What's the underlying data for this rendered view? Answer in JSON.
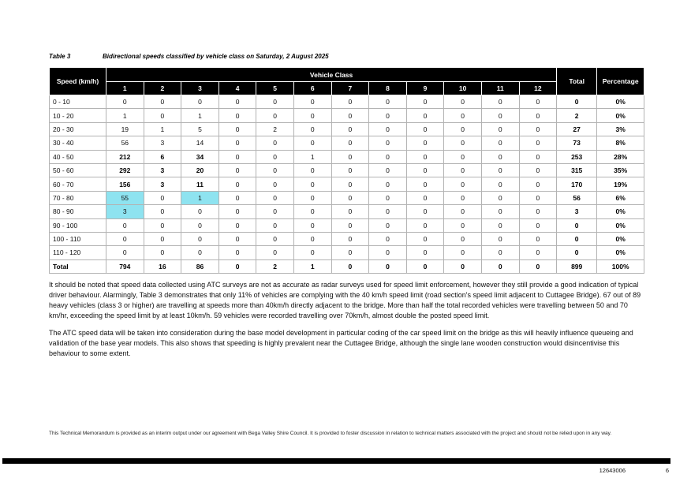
{
  "page": {
    "caption_label": "Table 3",
    "caption_text": "Bidirectional speeds classified by vehicle class on Saturday, 2 August 2025",
    "footnote": "This Technical Memorandum is provided as an interim output under our agreement with Bega Valley Shire Council. It is provided to foster discussion in relation to technical matters associated with the project and should not be relied upon in any way.",
    "footer": {
      "doc_number": "12643006",
      "page_number": "6"
    }
  },
  "table": {
    "corner_header": "Speed (km/h)",
    "group_header": "Vehicle Class",
    "class_columns": [
      "1",
      "2",
      "3",
      "4",
      "5",
      "6",
      "7",
      "8",
      "9",
      "10",
      "11",
      "12"
    ],
    "total_header": "Total",
    "percentage_header": "Percentage",
    "highlight_color": "#8ee3f0",
    "rows": [
      {
        "label": "0 - 10",
        "values": [
          0,
          0,
          0,
          0,
          0,
          0,
          0,
          0,
          0,
          0,
          0,
          0
        ],
        "total": "0",
        "pct": "0%"
      },
      {
        "label": "10 - 20",
        "values": [
          1,
          0,
          1,
          0,
          0,
          0,
          0,
          0,
          0,
          0,
          0,
          0
        ],
        "total": "2",
        "pct": "0%"
      },
      {
        "label": "20 - 30",
        "values": [
          19,
          1,
          5,
          0,
          2,
          0,
          0,
          0,
          0,
          0,
          0,
          0
        ],
        "total": "27",
        "pct": "3%"
      },
      {
        "label": "30 - 40",
        "values": [
          56,
          3,
          14,
          0,
          0,
          0,
          0,
          0,
          0,
          0,
          0,
          0
        ],
        "total": "73",
        "pct": "8%"
      },
      {
        "label": "40 - 50",
        "values": [
          212,
          6,
          34,
          0,
          0,
          1,
          0,
          0,
          0,
          0,
          0,
          0
        ],
        "total": "253",
        "pct": "28%",
        "bold": [
          0,
          1,
          2
        ]
      },
      {
        "label": "50 - 60",
        "values": [
          292,
          3,
          20,
          0,
          0,
          0,
          0,
          0,
          0,
          0,
          0,
          0
        ],
        "total": "315",
        "pct": "35%",
        "bold": [
          0,
          1,
          2
        ]
      },
      {
        "label": "60 - 70",
        "values": [
          156,
          3,
          11,
          0,
          0,
          0,
          0,
          0,
          0,
          0,
          0,
          0
        ],
        "total": "170",
        "pct": "19%",
        "bold": [
          0,
          1,
          2
        ]
      },
      {
        "label": "70 - 80",
        "values": [
          55,
          0,
          1,
          0,
          0,
          0,
          0,
          0,
          0,
          0,
          0,
          0
        ],
        "total": "56",
        "pct": "6%",
        "hl": [
          0,
          2
        ]
      },
      {
        "label": "80 - 90",
        "values": [
          3,
          0,
          0,
          0,
          0,
          0,
          0,
          0,
          0,
          0,
          0,
          0
        ],
        "total": "3",
        "pct": "0%",
        "hl": [
          0
        ]
      },
      {
        "label": "90 - 100",
        "values": [
          0,
          0,
          0,
          0,
          0,
          0,
          0,
          0,
          0,
          0,
          0,
          0
        ],
        "total": "0",
        "pct": "0%"
      },
      {
        "label": "100 - 110",
        "values": [
          0,
          0,
          0,
          0,
          0,
          0,
          0,
          0,
          0,
          0,
          0,
          0
        ],
        "total": "0",
        "pct": "0%"
      },
      {
        "label": "110 - 120",
        "values": [
          0,
          0,
          0,
          0,
          0,
          0,
          0,
          0,
          0,
          0,
          0,
          0
        ],
        "total": "0",
        "pct": "0%"
      },
      {
        "label": "Total",
        "values": [
          794,
          16,
          86,
          0,
          2,
          1,
          0,
          0,
          0,
          0,
          0,
          0
        ],
        "total": "899",
        "pct": "100%",
        "is_total": true
      }
    ]
  },
  "paragraphs": [
    "It should be noted that speed data collected using ATC surveys are not as accurate as radar surveys used for speed limit enforcement, however they still provide a good indication of typical driver behaviour. Alarmingly, Table 3 demonstrates that only 11% of vehicles are complying with the 40 km/h speed limit (road section's speed limit adjacent to Cuttagee Bridge). 67 out of 89 heavy vehicles (class 3 or higher) are travelling at speeds more than 40km/h directly adjacent to the bridge. More than half the total recorded vehicles were travelling between 50 and 70 km/hr, exceeding the speed limit by at least 10km/h. 59 vehicles were recorded travelling over 70km/h, almost double the posted speed limit.",
    "The ATC speed data will be taken into consideration during the base model development in particular coding of the car speed limit on the bridge as this will heavily influence queueing and validation of the base year models. This also shows that speeding is highly prevalent near the Cuttagee Bridge, although the single lane wooden construction would disincentivise this behaviour to some extent."
  ]
}
